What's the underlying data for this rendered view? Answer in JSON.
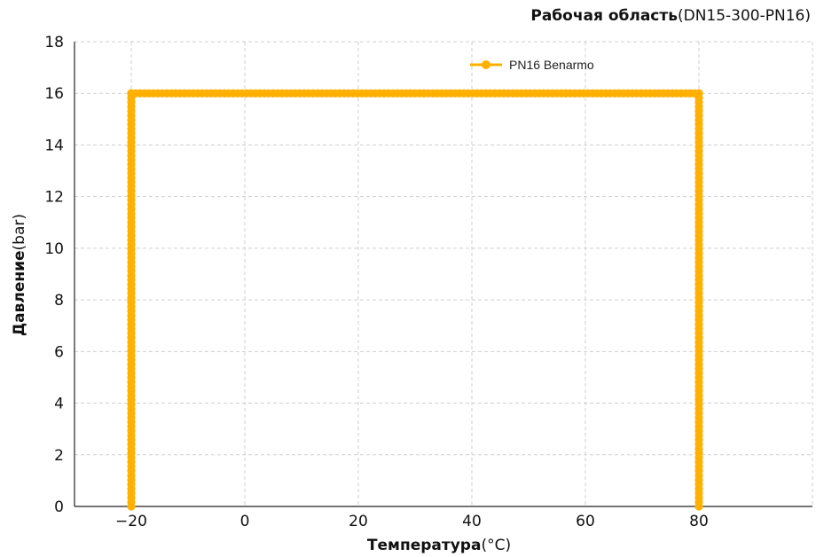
{
  "chart_data": {
    "type": "line",
    "title": "Рабочая область",
    "title_suffix": "(DN15-300-PN16)",
    "xlabel": "Температура",
    "xlabel_unit": "(°C)",
    "ylabel": "Давление",
    "ylabel_unit": "(bar)",
    "xlim": [
      -30,
      100
    ],
    "ylim": [
      0,
      18
    ],
    "xticks": [
      -20,
      0,
      20,
      40,
      60,
      80
    ],
    "xtick_labels": [
      "−20",
      "0",
      "20",
      "40",
      "60",
      "80"
    ],
    "yticks": [
      0,
      2,
      4,
      6,
      8,
      10,
      12,
      14,
      16,
      18
    ],
    "ytick_labels": [
      "0",
      "2",
      "4",
      "6",
      "8",
      "10",
      "12",
      "14",
      "16",
      "18"
    ],
    "grid": true,
    "legend_position": "top-center",
    "series": [
      {
        "name": "PN16 Benarmo",
        "color": "#FFB000",
        "marker": "circle",
        "x": [
          -20,
          -20,
          80,
          80
        ],
        "y": [
          0,
          16,
          16,
          0
        ]
      }
    ]
  }
}
